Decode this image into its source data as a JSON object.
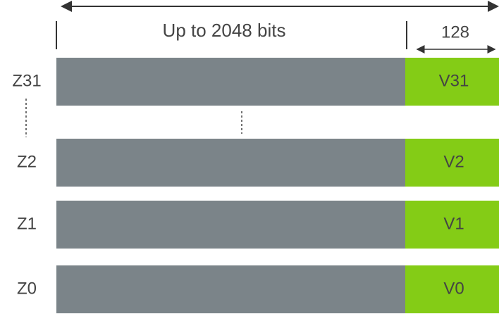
{
  "header": {
    "width_label": "Up to 2048 bits",
    "v_width_label": "128"
  },
  "registers": [
    {
      "z": "Z31",
      "v": "V31"
    },
    {
      "z": "Z2",
      "v": "V2"
    },
    {
      "z": "Z1",
      "v": "V1"
    },
    {
      "z": "Z0",
      "v": "V0"
    }
  ]
}
